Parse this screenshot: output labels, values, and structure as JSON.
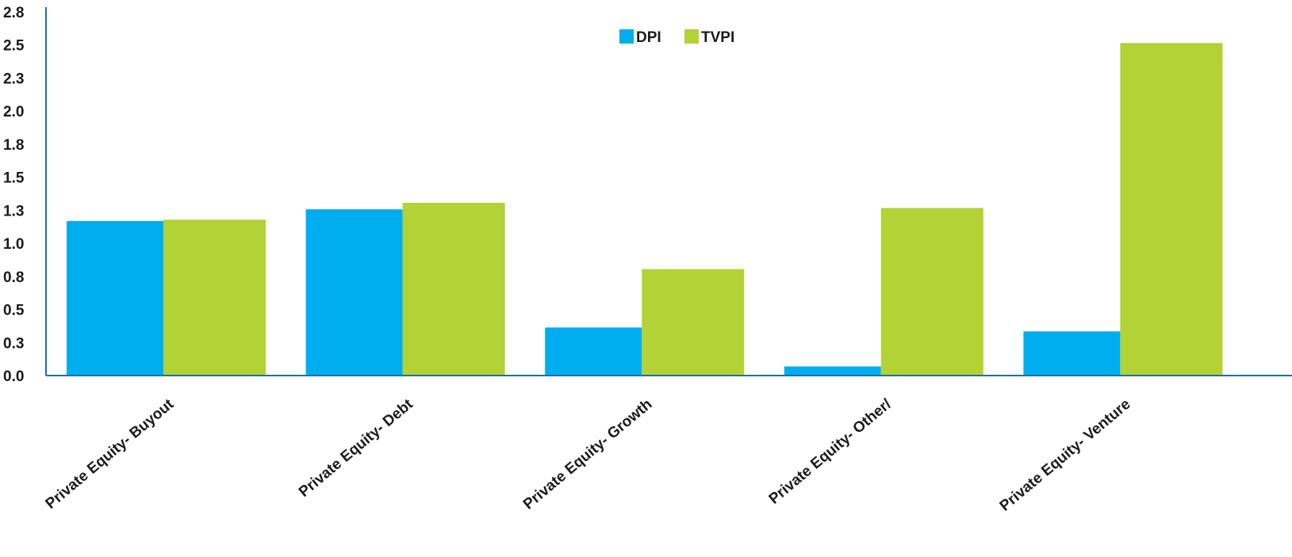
{
  "chart_data": {
    "type": "bar",
    "categories": [
      "Private Equity- Buyout",
      "Private Equity- Debt",
      "Private Equity- Growth",
      "Private Equity- Other/",
      "Private Equity- Venture"
    ],
    "series": [
      {
        "name": "DPI",
        "color": "#00aeef",
        "values": [
          1.19,
          1.28,
          0.37,
          0.07,
          0.34
        ]
      },
      {
        "name": "TVPI",
        "color": "#b2d235",
        "values": [
          1.2,
          1.33,
          0.82,
          1.29,
          2.56
        ]
      }
    ],
    "y_ticks": [
      "0.0",
      "0.3",
      "0.5",
      "0.8",
      "1.0",
      "1.3",
      "1.5",
      "1.8",
      "2.0",
      "2.3",
      "2.5",
      "2.8"
    ],
    "ylim": [
      0,
      2.8
    ],
    "grid": false,
    "legend": {
      "position": "top-center"
    },
    "axis_color": "#1f6fa8"
  }
}
